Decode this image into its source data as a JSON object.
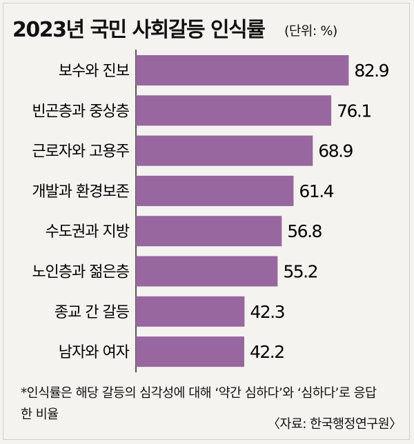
{
  "chart_data": {
    "type": "bar",
    "orientation": "horizontal",
    "title": "2023년 국민 사회갈등 인식률",
    "unit": "(단위: %)",
    "categories": [
      "보수와 진보",
      "빈곤층과 중상층",
      "근로자와 고용주",
      "개발과 환경보존",
      "수도권과 지방",
      "노인층과 젊은층",
      "종교 간 갈등",
      "남자와 여자"
    ],
    "values": [
      82.9,
      76.1,
      68.9,
      61.4,
      56.8,
      55.2,
      42.3,
      42.2
    ],
    "value_labels": [
      "82.9",
      "76.1",
      "68.9",
      "61.4",
      "56.8",
      "55.2",
      "42.3",
      "42.2"
    ],
    "xlim": [
      0,
      100
    ],
    "bar_color": "#98679f",
    "grid": false,
    "legend": "none"
  },
  "footnote": "*인식률은 해당 갈등의 심각성에 대해 ‘약간 심하다’와 ‘심하다’로 응답한 비율",
  "source": "〈자료: 한국행정연구원〉"
}
